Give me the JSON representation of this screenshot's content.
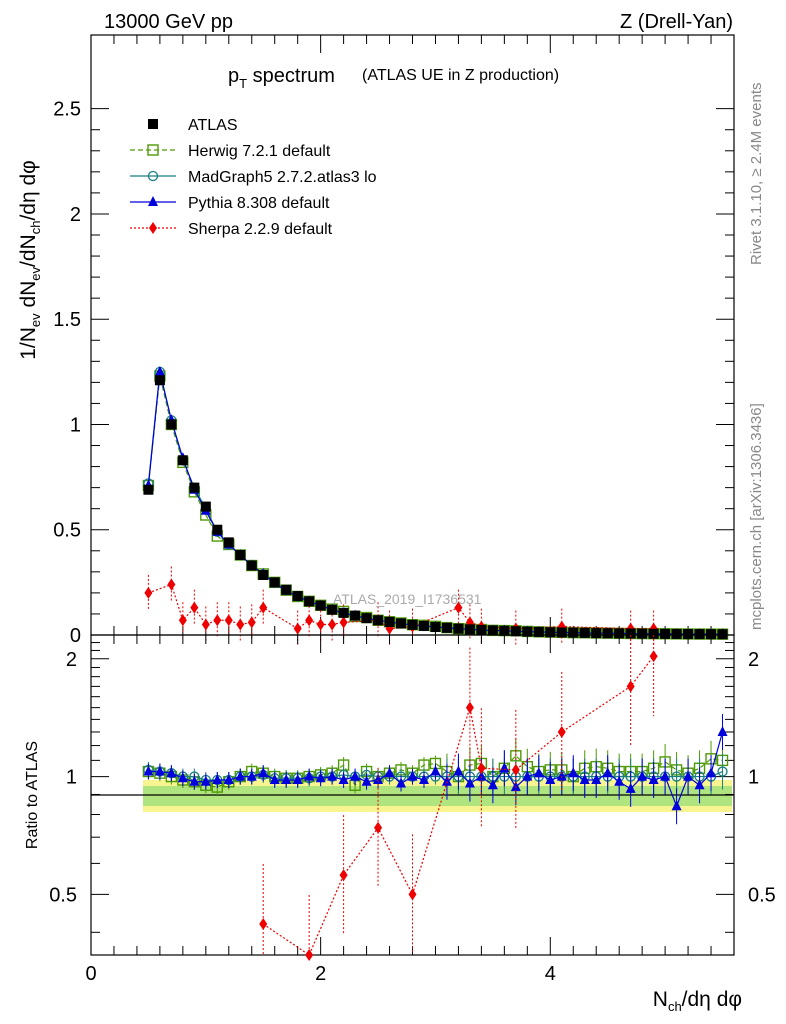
{
  "header": {
    "energy_label": "13000 GeV pp",
    "process_label": "Z (Drell-Yan)"
  },
  "side_labels": {
    "rivet": "Rivet 3.1.10, ≥ 2.4M events",
    "mcplots": "mcplots.cern.ch [arXiv:1306.3436]"
  },
  "chart_data": [
    {
      "type": "line",
      "panel": "main",
      "title_main": "p",
      "title_sub": "T",
      "title_rest": " spectrum",
      "subtitle": "(ATLAS UE in Z production)",
      "watermark": "ATLAS_2019_I1736531",
      "ylabel": "1/N_ev dN_ev/dN_ch/dη dφ",
      "xlim": [
        0,
        5.6
      ],
      "ylim": [
        0,
        2.85
      ],
      "yticks": [
        "0",
        "0.5",
        "1",
        "1.5",
        "2",
        "2.5"
      ],
      "legend_position": "top-left",
      "x": [
        0.5,
        0.6,
        0.7,
        0.8,
        0.9,
        1.0,
        1.1,
        1.2,
        1.3,
        1.4,
        1.5,
        1.6,
        1.7,
        1.8,
        1.9,
        2.0,
        2.1,
        2.2,
        2.3,
        2.4,
        2.5,
        2.6,
        2.7,
        2.8,
        2.9,
        3.0,
        3.1,
        3.2,
        3.3,
        3.4,
        3.5,
        3.6,
        3.7,
        3.8,
        3.9,
        4.0,
        4.1,
        4.2,
        4.3,
        4.4,
        4.5,
        4.6,
        4.7,
        4.8,
        4.9,
        5.0,
        5.1,
        5.2,
        5.3,
        5.4,
        5.5
      ],
      "series": [
        {
          "name": "ATLAS",
          "color": "#000000",
          "marker": "square-filled",
          "line": "none",
          "values": [
            0.69,
            1.21,
            1.0,
            0.83,
            0.7,
            0.61,
            0.5,
            0.44,
            0.38,
            0.33,
            0.285,
            0.25,
            0.215,
            0.185,
            0.16,
            0.14,
            0.12,
            0.105,
            0.092,
            0.08,
            0.07,
            0.062,
            0.055,
            0.048,
            0.043,
            0.038,
            0.034,
            0.03,
            0.027,
            0.024,
            0.022,
            0.02,
            0.018,
            0.016,
            0.0145,
            0.013,
            0.012,
            0.011,
            0.01,
            0.009,
            0.0083,
            0.0076,
            0.007,
            0.0064,
            0.0059,
            0.0054,
            0.005,
            0.0046,
            0.0042,
            0.0039,
            0.0036
          ]
        },
        {
          "name": "Herwig 7.2.1 default",
          "color": "#4e9a06",
          "marker": "square-open",
          "line": "dashed",
          "values": [
            0.71,
            1.23,
            1.0,
            0.82,
            0.68,
            0.57,
            0.47,
            0.43,
            0.38,
            0.33,
            0.29,
            0.25,
            0.213,
            0.183,
            0.16,
            0.141,
            0.123,
            0.112,
            0.088,
            0.083,
            0.07,
            0.063,
            0.057,
            0.049,
            0.046,
            0.041,
            0.035,
            0.03,
            0.029,
            0.026,
            0.022,
            0.021,
            0.02,
            0.017,
            0.015,
            0.0135,
            0.0125,
            0.011,
            0.0105,
            0.0095,
            0.0087,
            0.0078,
            0.0072,
            0.0066,
            0.0062,
            0.0059,
            0.0052,
            0.0047,
            0.0044,
            0.0043,
            0.004
          ]
        },
        {
          "name": "MadGraph5 2.7.2.atlas3 lo",
          "color": "#1a7f7f",
          "marker": "circle-open",
          "line": "solid",
          "values": [
            0.72,
            1.25,
            1.02,
            0.83,
            0.7,
            0.6,
            0.49,
            0.43,
            0.38,
            0.33,
            0.287,
            0.248,
            0.213,
            0.183,
            0.159,
            0.14,
            0.12,
            0.106,
            0.092,
            0.081,
            0.07,
            0.062,
            0.055,
            0.048,
            0.043,
            0.038,
            0.034,
            0.03,
            0.027,
            0.024,
            0.022,
            0.02,
            0.018,
            0.016,
            0.0145,
            0.013,
            0.012,
            0.011,
            0.01,
            0.009,
            0.0083,
            0.0076,
            0.007,
            0.0064,
            0.0059,
            0.0054,
            0.005,
            0.0046,
            0.0042,
            0.0039,
            0.0037
          ]
        },
        {
          "name": "Pythia 8.308 default",
          "color": "#0000dd",
          "marker": "triangle-filled",
          "line": "solid",
          "values": [
            0.71,
            1.25,
            1.02,
            0.84,
            0.69,
            0.59,
            0.49,
            0.43,
            0.38,
            0.33,
            0.29,
            0.246,
            0.21,
            0.182,
            0.16,
            0.139,
            0.12,
            0.103,
            0.092,
            0.078,
            0.069,
            0.063,
            0.053,
            0.048,
            0.042,
            0.039,
            0.033,
            0.031,
            0.026,
            0.024,
            0.021,
            0.021,
            0.017,
            0.016,
            0.0148,
            0.0127,
            0.012,
            0.0112,
            0.0098,
            0.0088,
            0.0085,
            0.0074,
            0.0065,
            0.0064,
            0.0058,
            0.0054,
            0.0042,
            0.0043,
            0.0041,
            0.004,
            0.0039
          ]
        },
        {
          "name": "Sherpa 2.2.9 default",
          "color": "#ee0000",
          "marker": "diamond-filled",
          "line": "dotted",
          "x": [
            0.5,
            0.7,
            0.8,
            0.9,
            1.0,
            1.1,
            1.2,
            1.3,
            1.4,
            1.5,
            1.8,
            1.9,
            2.0,
            2.1,
            2.2,
            2.5,
            2.6,
            2.8,
            3.2,
            3.3,
            3.4,
            3.7,
            4.1,
            4.7,
            4.9
          ],
          "values": [
            0.2,
            0.24,
            0.07,
            0.13,
            0.05,
            0.07,
            0.07,
            0.05,
            0.06,
            0.13,
            0.03,
            0.07,
            0.05,
            0.05,
            0.06,
            0.07,
            0.03,
            0.04,
            0.13,
            0.06,
            0.04,
            0.03,
            0.04,
            0.03,
            0.03
          ]
        }
      ]
    },
    {
      "type": "line",
      "panel": "ratio",
      "ylabel": "Ratio to ATLAS",
      "xlabel": "N_ch/dη dφ",
      "xlim": [
        0,
        5.6
      ],
      "ylim": [
        0.35,
        2.3
      ],
      "yticks": [
        "0.5",
        "1",
        "2"
      ],
      "xticks": [
        "0",
        "2",
        "4"
      ],
      "x": [
        0.5,
        0.6,
        0.7,
        0.8,
        0.9,
        1.0,
        1.1,
        1.2,
        1.3,
        1.4,
        1.5,
        1.6,
        1.7,
        1.8,
        1.9,
        2.0,
        2.1,
        2.2,
        2.3,
        2.4,
        2.5,
        2.6,
        2.7,
        2.8,
        2.9,
        3.0,
        3.1,
        3.2,
        3.3,
        3.4,
        3.5,
        3.6,
        3.7,
        3.8,
        3.9,
        4.0,
        4.1,
        4.2,
        4.3,
        4.4,
        4.5,
        4.6,
        4.7,
        4.8,
        4.9,
        5.0,
        5.1,
        5.2,
        5.3,
        5.4,
        5.5
      ],
      "series": [
        {
          "name": "Herwig 7.2.1 default",
          "color": "#4e9a06",
          "values": [
            1.03,
            1.02,
            1.0,
            0.98,
            0.97,
            0.95,
            0.94,
            0.97,
            1.0,
            1.03,
            1.02,
            1.0,
            0.99,
            0.99,
            1.0,
            1.01,
            1.02,
            1.07,
            0.95,
            1.03,
            1.0,
            1.02,
            1.04,
            1.02,
            1.07,
            1.08,
            1.03,
            1.0,
            1.07,
            1.08,
            1.0,
            1.05,
            1.13,
            1.06,
            1.03,
            1.04,
            1.04,
            1.0,
            1.05,
            1.06,
            1.05,
            1.03,
            1.03,
            1.03,
            1.05,
            1.09,
            1.04,
            1.02,
            1.05,
            1.11,
            1.1
          ]
        },
        {
          "name": "MadGraph5 2.7.2.atlas3 lo",
          "color": "#1a7f7f",
          "values": [
            1.04,
            1.03,
            1.02,
            1.0,
            1.0,
            0.98,
            0.98,
            0.98,
            1.0,
            1.0,
            1.01,
            0.99,
            0.99,
            0.99,
            0.99,
            1.0,
            1.0,
            1.01,
            1.0,
            1.01,
            1.0,
            1.0,
            1.0,
            1.0,
            1.0,
            1.0,
            1.0,
            1.0,
            1.0,
            1.0,
            1.0,
            1.0,
            1.0,
            1.0,
            1.0,
            1.0,
            1.0,
            1.0,
            1.0,
            1.0,
            1.0,
            1.0,
            1.0,
            1.0,
            1.0,
            1.0,
            1.0,
            1.0,
            1.0,
            1.0,
            1.03
          ]
        },
        {
          "name": "Pythia 8.308 default",
          "color": "#0000dd",
          "values": [
            1.03,
            1.03,
            1.02,
            0.99,
            0.97,
            0.97,
            0.98,
            0.98,
            1.0,
            1.0,
            1.02,
            0.98,
            0.98,
            0.98,
            1.0,
            0.99,
            1.0,
            0.98,
            1.0,
            0.97,
            0.98,
            1.02,
            0.96,
            1.0,
            0.98,
            1.03,
            0.97,
            1.03,
            0.96,
            1.0,
            0.95,
            1.05,
            0.94,
            1.0,
            1.02,
            0.98,
            1.0,
            1.02,
            0.98,
            0.98,
            1.02,
            0.97,
            0.93,
            1.0,
            0.98,
            1.0,
            0.84,
            1.0,
            0.95,
            1.02,
            1.3
          ]
        },
        {
          "name": "Sherpa 2.2.9 default",
          "color": "#ee0000",
          "x": [
            1.5,
            1.9,
            2.2,
            2.5,
            2.8,
            3.3,
            3.4,
            3.7,
            4.1,
            4.7,
            4.9
          ],
          "values": [
            0.42,
            0.35,
            0.56,
            0.74,
            0.5,
            1.5,
            1.05,
            1.04,
            1.3,
            1.7,
            2.03
          ]
        }
      ]
    }
  ]
}
